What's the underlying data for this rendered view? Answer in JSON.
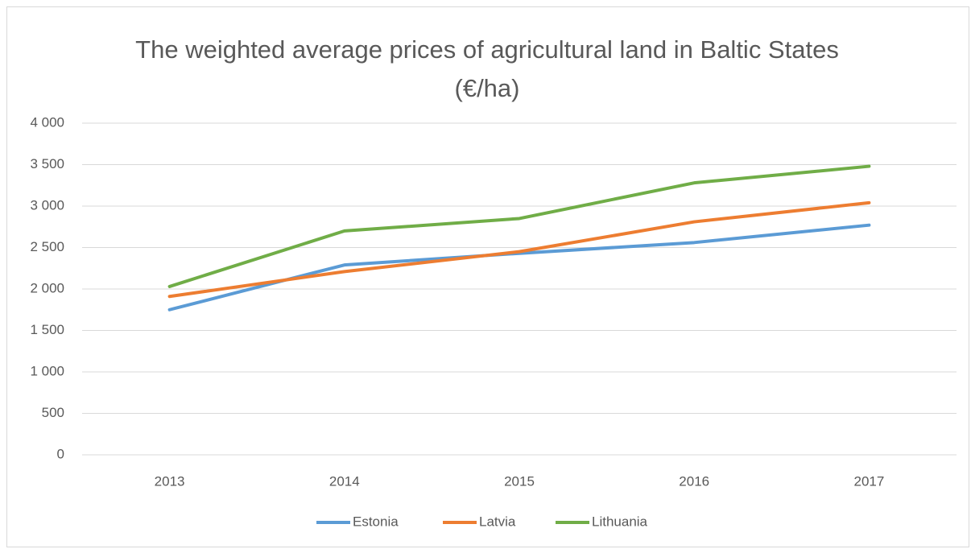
{
  "chart_data": {
    "type": "line",
    "title": "The weighted average prices of agricultural land in Baltic States (€/ha)",
    "categories": [
      "2013",
      "2014",
      "2015",
      "2016",
      "2017"
    ],
    "series": [
      {
        "name": "Estonia",
        "color": "#5b9bd5",
        "values": [
          1750,
          2290,
          2430,
          2560,
          2770
        ]
      },
      {
        "name": "Latvia",
        "color": "#ed7d31",
        "values": [
          1910,
          2210,
          2450,
          2810,
          3040
        ]
      },
      {
        "name": "Lithuania",
        "color": "#70ad47",
        "values": [
          2030,
          2700,
          2850,
          3280,
          3480
        ]
      }
    ],
    "ylim": [
      0,
      4000
    ],
    "yticks": [
      0,
      500,
      {
        "value": 1000,
        "label": "1 000"
      },
      {
        "value": 1500,
        "label": "1 500"
      },
      {
        "value": 2000,
        "label": "2 000"
      },
      {
        "value": 2500,
        "label": "2 500"
      },
      {
        "value": 3000,
        "label": "3 000"
      },
      {
        "value": 3500,
        "label": "3 500"
      },
      {
        "value": 4000,
        "label": "4 000"
      }
    ],
    "grid": true,
    "legend": "bottom"
  }
}
